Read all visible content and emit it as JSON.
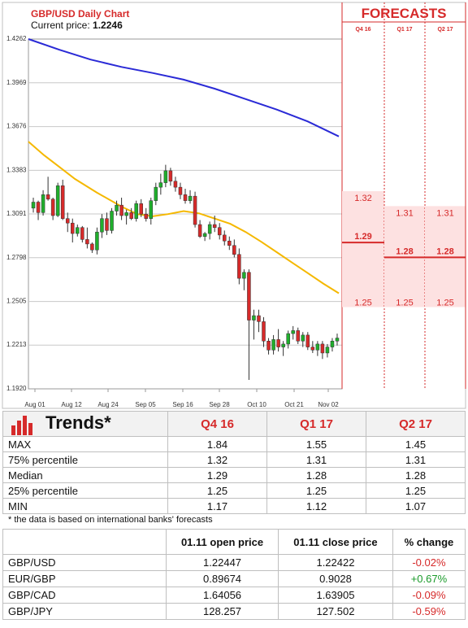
{
  "chart_data": {
    "type": "candlestick",
    "title": "GBP/USD Daily Chart",
    "current_price_label": "Current price:",
    "current_price": "1.2246",
    "y_ticks": [
      "1.4262",
      "1.3969",
      "1.3676",
      "1.3383",
      "1.3091",
      "1.2798",
      "1.2505",
      "1.2213",
      "1.1920"
    ],
    "ylim": [
      1.192,
      1.4262
    ],
    "x_ticks": [
      "Aug 01",
      "Aug 12",
      "Aug 24",
      "Sep 05",
      "Sep 16",
      "Sep 28",
      "Oct 10",
      "Oct 21",
      "Nov 02"
    ],
    "candles": [
      [
        1.313,
        1.32,
        1.31,
        1.317
      ],
      [
        1.317,
        1.318,
        1.305,
        1.31
      ],
      [
        1.31,
        1.325,
        1.308,
        1.322
      ],
      [
        1.322,
        1.334,
        1.318,
        1.319
      ],
      [
        1.319,
        1.32,
        1.305,
        1.308
      ],
      [
        1.308,
        1.33,
        1.307,
        1.328
      ],
      [
        1.328,
        1.332,
        1.305,
        1.306
      ],
      [
        1.306,
        1.31,
        1.297,
        1.303
      ],
      [
        1.303,
        1.306,
        1.29,
        1.296
      ],
      [
        1.296,
        1.302,
        1.294,
        1.3
      ],
      [
        1.3,
        1.301,
        1.29,
        1.292
      ],
      [
        1.292,
        1.3,
        1.286,
        1.289
      ],
      [
        1.289,
        1.29,
        1.283,
        1.285
      ],
      [
        1.285,
        1.3,
        1.282,
        1.297
      ],
      [
        1.297,
        1.309,
        1.293,
        1.306
      ],
      [
        1.306,
        1.31,
        1.295,
        1.298
      ],
      [
        1.298,
        1.313,
        1.296,
        1.311
      ],
      [
        1.311,
        1.318,
        1.308,
        1.315
      ],
      [
        1.315,
        1.32,
        1.305,
        1.308
      ],
      [
        1.308,
        1.312,
        1.302,
        1.31
      ],
      [
        1.31,
        1.313,
        1.305,
        1.306
      ],
      [
        1.306,
        1.318,
        1.304,
        1.316
      ],
      [
        1.316,
        1.319,
        1.307,
        1.309
      ],
      [
        1.309,
        1.313,
        1.304,
        1.306
      ],
      [
        1.306,
        1.32,
        1.302,
        1.318
      ],
      [
        1.318,
        1.33,
        1.315,
        1.327
      ],
      [
        1.327,
        1.336,
        1.322,
        1.33
      ],
      [
        1.33,
        1.342,
        1.327,
        1.338
      ],
      [
        1.338,
        1.34,
        1.328,
        1.331
      ],
      [
        1.331,
        1.334,
        1.324,
        1.327
      ],
      [
        1.327,
        1.33,
        1.319,
        1.322
      ],
      [
        1.322,
        1.326,
        1.316,
        1.318
      ],
      [
        1.318,
        1.325,
        1.316,
        1.321
      ],
      [
        1.321,
        1.324,
        1.3,
        1.302
      ],
      [
        1.302,
        1.305,
        1.293,
        1.294
      ],
      [
        1.294,
        1.297,
        1.291,
        1.296
      ],
      [
        1.296,
        1.304,
        1.292,
        1.302
      ],
      [
        1.302,
        1.308,
        1.297,
        1.3
      ],
      [
        1.3,
        1.303,
        1.292,
        1.295
      ],
      [
        1.295,
        1.298,
        1.288,
        1.291
      ],
      [
        1.291,
        1.294,
        1.285,
        1.288
      ],
      [
        1.288,
        1.292,
        1.28,
        1.282
      ],
      [
        1.282,
        1.286,
        1.262,
        1.266
      ],
      [
        1.266,
        1.272,
        1.258,
        1.27
      ],
      [
        1.27,
        1.272,
        1.198,
        1.238
      ],
      [
        1.238,
        1.245,
        1.225,
        1.241
      ],
      [
        1.241,
        1.245,
        1.23,
        1.237
      ],
      [
        1.237,
        1.24,
        1.22,
        1.224
      ],
      [
        1.224,
        1.226,
        1.215,
        1.218
      ],
      [
        1.218,
        1.228,
        1.215,
        1.225
      ],
      [
        1.225,
        1.232,
        1.217,
        1.22
      ],
      [
        1.22,
        1.224,
        1.214,
        1.222
      ],
      [
        1.222,
        1.231,
        1.219,
        1.229
      ],
      [
        1.229,
        1.234,
        1.225,
        1.231
      ],
      [
        1.231,
        1.233,
        1.222,
        1.224
      ],
      [
        1.224,
        1.23,
        1.22,
        1.228
      ],
      [
        1.228,
        1.23,
        1.218,
        1.22
      ],
      [
        1.22,
        1.224,
        1.216,
        1.218
      ],
      [
        1.218,
        1.224,
        1.214,
        1.222
      ],
      [
        1.222,
        1.224,
        1.212,
        1.216
      ],
      [
        1.216,
        1.222,
        1.213,
        1.22
      ],
      [
        1.22,
        1.226,
        1.217,
        1.224
      ],
      [
        1.224,
        1.229,
        1.221,
        1.226
      ]
    ],
    "ma_slow": [
      [
        0,
        1.4262
      ],
      [
        0.1,
        1.419
      ],
      [
        0.2,
        1.4125
      ],
      [
        0.3,
        1.4075
      ],
      [
        0.4,
        1.4035
      ],
      [
        0.5,
        1.399
      ],
      [
        0.6,
        1.393
      ],
      [
        0.7,
        1.386
      ],
      [
        0.8,
        1.379
      ],
      [
        0.9,
        1.371
      ],
      [
        1,
        1.361
      ]
    ],
    "ma_fast": [
      [
        0,
        1.3575
      ],
      [
        0.05,
        1.3485
      ],
      [
        0.1,
        1.3405
      ],
      [
        0.15,
        1.3325
      ],
      [
        0.22,
        1.3235
      ],
      [
        0.3,
        1.314
      ],
      [
        0.35,
        1.309
      ],
      [
        0.4,
        1.3075
      ],
      [
        0.45,
        1.309
      ],
      [
        0.5,
        1.311
      ],
      [
        0.55,
        1.3095
      ],
      [
        0.6,
        1.306
      ],
      [
        0.65,
        1.3025
      ],
      [
        0.7,
        1.297
      ],
      [
        0.75,
        1.2905
      ],
      [
        0.8,
        1.2835
      ],
      [
        0.85,
        1.2765
      ],
      [
        0.9,
        1.2695
      ],
      [
        0.95,
        1.2625
      ],
      [
        1,
        1.256
      ]
    ],
    "forecasts": {
      "title": "FORECASTS",
      "columns": [
        "Q4 16",
        "Q1 17",
        "Q2 17"
      ],
      "high": [
        "1.32",
        "1.31",
        "1.31"
      ],
      "median": [
        "1.29",
        "1.28",
        "1.28"
      ],
      "low": [
        "1.25",
        "1.25",
        "1.25"
      ]
    },
    "colors": {
      "up": "#1fae2c",
      "down": "#d62a2a",
      "ma_slow": "#2a2ad6",
      "ma_fast": "#f5b800",
      "forecast_band": "#fde1e1",
      "accent": "#d62a2a"
    }
  },
  "trends": {
    "title": "Trends*",
    "columns": [
      "Q4 16",
      "Q1 17",
      "Q2 17"
    ],
    "rows": [
      {
        "label": "MAX",
        "values": [
          "1.84",
          "1.55",
          "1.45"
        ]
      },
      {
        "label": "75% percentile",
        "values": [
          "1.32",
          "1.31",
          "1.31"
        ]
      },
      {
        "label": "Median",
        "values": [
          "1.29",
          "1.28",
          "1.28"
        ]
      },
      {
        "label": "25% percentile",
        "values": [
          "1.25",
          "1.25",
          "1.25"
        ]
      },
      {
        "label": "MIN",
        "values": [
          "1.17",
          "1.12",
          "1.07"
        ]
      }
    ],
    "note": "* the data is based on international banks' forecasts"
  },
  "fx": {
    "columns": [
      "",
      "01.11 open price",
      "01.11 close price",
      "% change"
    ],
    "rows": [
      {
        "pair": "GBP/USD",
        "open": "1.22447",
        "close": "1.22422",
        "change": "-0.02%"
      },
      {
        "pair": "EUR/GBP",
        "open": "0.89674",
        "close": "0.9028",
        "change": "+0.67%"
      },
      {
        "pair": "GBP/CAD",
        "open": "1.64056",
        "close": "1.63905",
        "change": "-0.09%"
      },
      {
        "pair": "GBP/JPY",
        "open": "128.257",
        "close": "127.502",
        "change": "-0.59%"
      }
    ]
  }
}
